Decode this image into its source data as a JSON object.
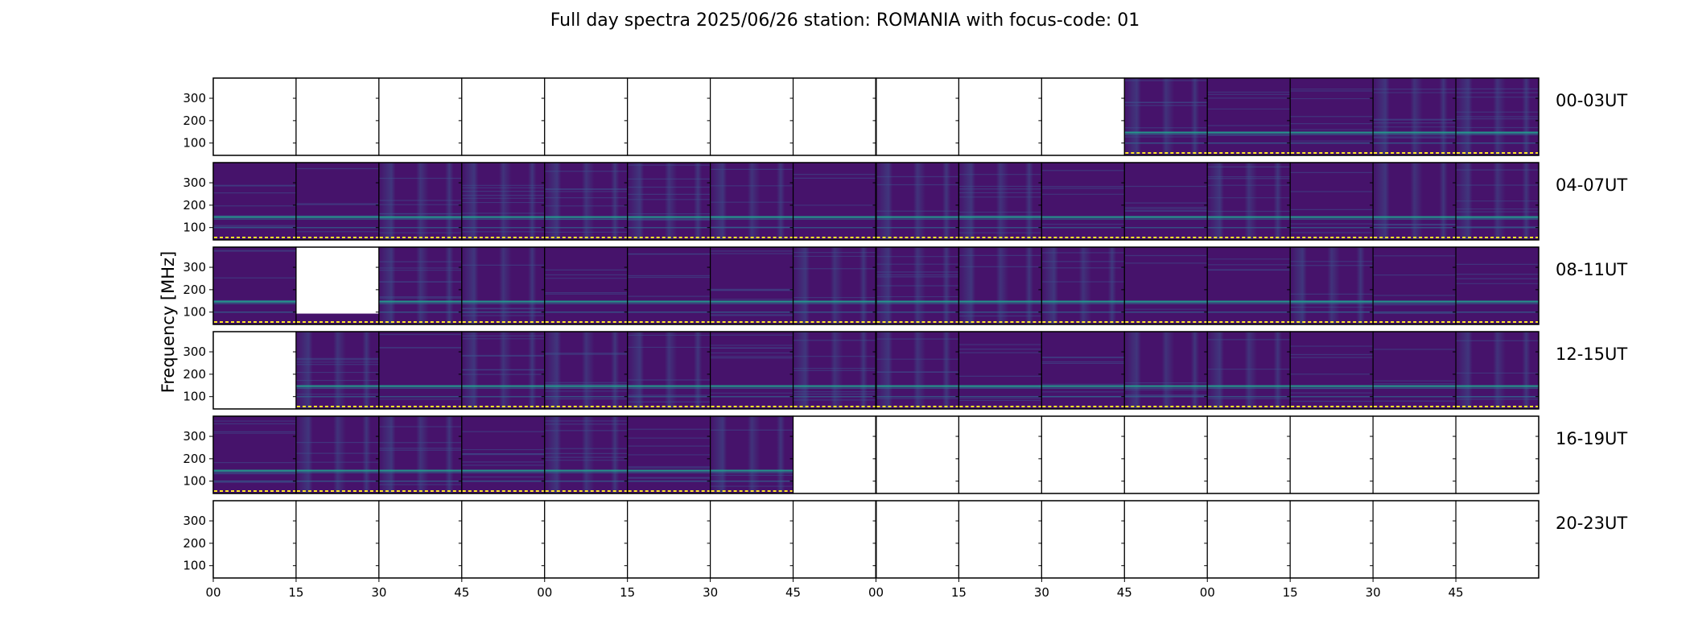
{
  "chart_data": {
    "type": "heatmap",
    "title": "Full day spectra 2025/06/26 station: ROMANIA with focus-code: 01",
    "ylabel": "Frequency [MHz]",
    "xlabel": "",
    "ylim": [
      45,
      390
    ],
    "y_ticks": [
      100,
      200,
      300
    ],
    "x_tick_labels": [
      "00",
      "15",
      "30",
      "45",
      "00",
      "15",
      "30",
      "45",
      "00",
      "15",
      "30",
      "45",
      "00",
      "15",
      "30",
      "45"
    ],
    "panels_per_row": 16,
    "panel_minutes": 15,
    "rows": [
      {
        "label": "00-03UT",
        "has_data": [
          0,
          0,
          0,
          0,
          0,
          0,
          0,
          0,
          0,
          0,
          0,
          1,
          1,
          1,
          1,
          1
        ]
      },
      {
        "label": "04-07UT",
        "has_data": [
          1,
          1,
          1,
          1,
          1,
          1,
          1,
          1,
          1,
          1,
          1,
          1,
          1,
          1,
          1,
          1
        ]
      },
      {
        "label": "08-11UT",
        "has_data": [
          1,
          0.5,
          1,
          1,
          1,
          1,
          1,
          1,
          1,
          1,
          1,
          1,
          1,
          1,
          1,
          1
        ]
      },
      {
        "label": "12-15UT",
        "has_data": [
          0,
          1,
          1,
          1,
          1,
          1,
          1,
          1,
          1,
          1,
          1,
          1,
          1,
          1,
          1,
          1
        ]
      },
      {
        "label": "16-19UT",
        "has_data": [
          1,
          1,
          1,
          1,
          1,
          1,
          1,
          0,
          0,
          0,
          0,
          0,
          0,
          0,
          0,
          0
        ]
      },
      {
        "label": "20-23UT",
        "has_data": [
          0,
          0,
          0,
          0,
          0,
          0,
          0,
          0,
          0,
          0,
          0,
          0,
          0,
          0,
          0,
          0
        ]
      }
    ]
  }
}
